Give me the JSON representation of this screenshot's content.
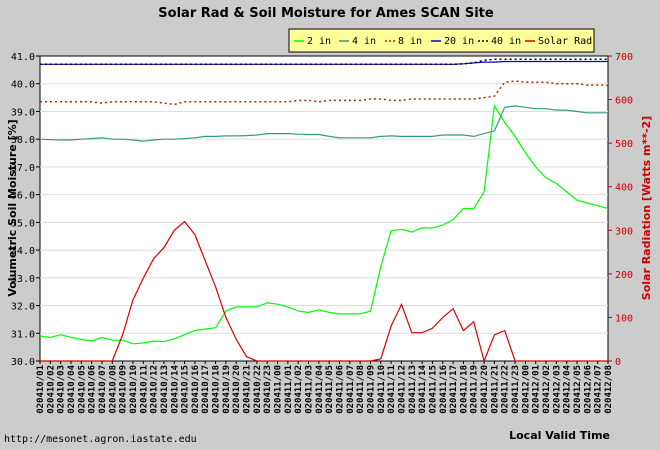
{
  "chart_data": {
    "type": "line",
    "title": "Solar Rad & Soil Moisture for Ames SCAN Site",
    "ylabel": "Volumetric Soil Moisture [%]",
    "y2label": "Solar Radiation [Watts m**-2]",
    "xlabel": "Local Valid Time",
    "ylim": [
      30.0,
      41.0
    ],
    "y2lim": [
      0,
      700
    ],
    "yticks": [
      "30.0",
      "31.0",
      "32.0",
      "33.0",
      "34.0",
      "35.0",
      "36.0",
      "37.0",
      "38.0",
      "39.0",
      "40.0",
      "41.0"
    ],
    "y2ticks": [
      "0",
      "100",
      "200",
      "300",
      "400",
      "500",
      "600",
      "700"
    ],
    "x": [
      "020410/01",
      "020410/02",
      "020410/03",
      "020410/04",
      "020410/05",
      "020410/06",
      "020410/07",
      "020410/08",
      "020410/09",
      "020410/10",
      "020410/11",
      "020410/12",
      "020410/13",
      "020410/14",
      "020410/15",
      "020410/16",
      "020410/17",
      "020410/18",
      "020410/19",
      "020410/20",
      "020410/21",
      "020410/22",
      "020410/23",
      "020411/00",
      "020411/01",
      "020411/02",
      "020411/03",
      "020411/04",
      "020411/05",
      "020411/06",
      "020411/07",
      "020411/08",
      "020411/09",
      "020411/10",
      "020411/11",
      "020411/12",
      "020411/13",
      "020411/14",
      "020411/15",
      "020411/16",
      "020411/17",
      "020411/18",
      "020411/19",
      "020411/20",
      "020411/21",
      "020411/22",
      "020411/23",
      "020412/00",
      "020412/01",
      "020412/02",
      "020412/03",
      "020412/04",
      "020412/05",
      "020412/06",
      "020412/07",
      "020412/08"
    ],
    "legend_position": "top-right",
    "series": [
      {
        "name": "2 in",
        "axis": "left",
        "color": "#00ff00",
        "style": "solid",
        "values": [
          30.9,
          30.85,
          30.95,
          30.85,
          30.78,
          30.72,
          30.85,
          30.75,
          30.75,
          30.62,
          30.65,
          30.72,
          30.7,
          30.8,
          30.95,
          31.1,
          31.15,
          31.2,
          31.8,
          31.95,
          31.95,
          31.95,
          32.1,
          32.05,
          31.95,
          31.8,
          31.75,
          31.85,
          31.75,
          31.7,
          31.7,
          31.7,
          31.8,
          33.4,
          34.7,
          34.75,
          34.65,
          34.8,
          34.8,
          34.9,
          35.1,
          35.5,
          35.5,
          36.1,
          39.2,
          38.6,
          38.1,
          37.5,
          37.0,
          36.6,
          36.4,
          36.1,
          35.8,
          35.7,
          35.6,
          35.5
        ]
      },
      {
        "name": "4 in",
        "axis": "left",
        "color": "#339988",
        "style": "solid",
        "values": [
          38.0,
          37.98,
          37.97,
          37.97,
          38.0,
          38.02,
          38.05,
          38.0,
          38.0,
          37.97,
          37.93,
          37.97,
          38.0,
          38.0,
          38.02,
          38.05,
          38.1,
          38.1,
          38.12,
          38.12,
          38.13,
          38.15,
          38.2,
          38.2,
          38.2,
          38.18,
          38.17,
          38.17,
          38.1,
          38.05,
          38.05,
          38.05,
          38.05,
          38.1,
          38.12,
          38.1,
          38.1,
          38.1,
          38.1,
          38.15,
          38.15,
          38.15,
          38.1,
          38.2,
          38.3,
          39.15,
          39.2,
          39.15,
          39.1,
          39.1,
          39.05,
          39.05,
          39.0,
          38.95,
          38.95,
          38.95
        ]
      },
      {
        "name": "8 in",
        "axis": "left",
        "color": "#993300",
        "style": "dotted",
        "values": [
          39.35,
          39.35,
          39.35,
          39.35,
          39.35,
          39.35,
          39.3,
          39.35,
          39.35,
          39.35,
          39.35,
          39.35,
          39.3,
          39.25,
          39.35,
          39.35,
          39.35,
          39.35,
          39.35,
          39.35,
          39.35,
          39.35,
          39.35,
          39.35,
          39.35,
          39.4,
          39.4,
          39.35,
          39.4,
          39.4,
          39.4,
          39.4,
          39.45,
          39.45,
          39.4,
          39.4,
          39.45,
          39.45,
          39.45,
          39.45,
          39.45,
          39.45,
          39.45,
          39.5,
          39.55,
          40.05,
          40.1,
          40.05,
          40.05,
          40.05,
          40.0,
          40.0,
          40.0,
          39.95,
          39.95,
          39.95
        ]
      },
      {
        "name": "20 in",
        "axis": "left",
        "color": "#0000cc",
        "style": "solid",
        "values": [
          40.7,
          40.7,
          40.7,
          40.7,
          40.7,
          40.7,
          40.7,
          40.7,
          40.7,
          40.7,
          40.7,
          40.7,
          40.7,
          40.7,
          40.7,
          40.7,
          40.7,
          40.7,
          40.7,
          40.7,
          40.7,
          40.7,
          40.7,
          40.7,
          40.7,
          40.7,
          40.7,
          40.7,
          40.7,
          40.7,
          40.7,
          40.7,
          40.7,
          40.7,
          40.7,
          40.7,
          40.7,
          40.7,
          40.7,
          40.7,
          40.7,
          40.72,
          40.75,
          40.78,
          40.78,
          40.8,
          40.8,
          40.8,
          40.8,
          40.8,
          40.8,
          40.8,
          40.8,
          40.8,
          40.8,
          40.8
        ]
      },
      {
        "name": "40 in",
        "axis": "left",
        "color": "#000000",
        "style": "dotted",
        "values": [
          40.7,
          40.7,
          40.7,
          40.7,
          40.7,
          40.7,
          40.7,
          40.7,
          40.7,
          40.7,
          40.7,
          40.7,
          40.7,
          40.7,
          40.7,
          40.7,
          40.7,
          40.7,
          40.7,
          40.7,
          40.7,
          40.7,
          40.7,
          40.7,
          40.7,
          40.7,
          40.7,
          40.7,
          40.7,
          40.7,
          40.7,
          40.7,
          40.7,
          40.7,
          40.7,
          40.7,
          40.7,
          40.7,
          40.7,
          40.7,
          40.7,
          40.72,
          40.75,
          40.85,
          40.88,
          40.88,
          40.88,
          40.88,
          40.88,
          40.88,
          40.88,
          40.88,
          40.88,
          40.88,
          40.88,
          40.88
        ]
      },
      {
        "name": "Solar Rad",
        "axis": "right",
        "color": "#dd0000",
        "style": "solid",
        "values": [
          0,
          0,
          0,
          0,
          0,
          0,
          0,
          0,
          60,
          140,
          190,
          235,
          260,
          300,
          320,
          290,
          230,
          170,
          100,
          50,
          10,
          0,
          0,
          0,
          0,
          0,
          0,
          0,
          0,
          0,
          0,
          0,
          0,
          5,
          80,
          130,
          65,
          65,
          75,
          100,
          120,
          70,
          90,
          0,
          60,
          70,
          0,
          0,
          0,
          0,
          0,
          0,
          0,
          0,
          0,
          0
        ]
      }
    ]
  },
  "footer": {
    "url": "http://mesonet.agron.iastate.edu"
  }
}
